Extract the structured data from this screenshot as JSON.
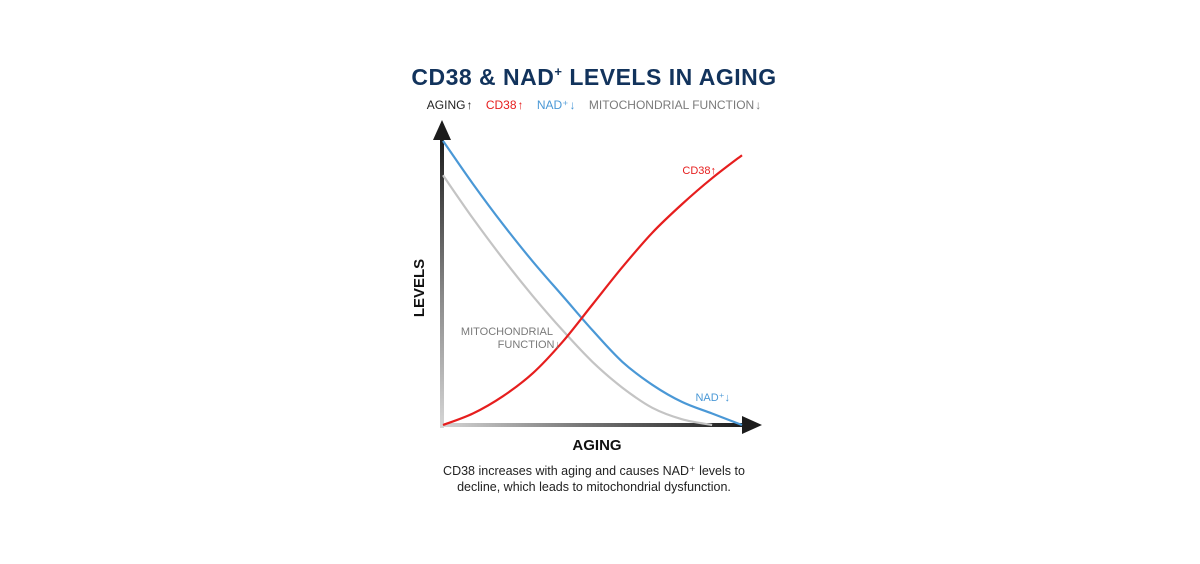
{
  "title_main": "CD38 & NAD",
  "title_sup": "+",
  "title_rest": " LEVELS IN AGING",
  "legend": [
    {
      "text": "AGING",
      "arrow": "↑",
      "color": "#222222"
    },
    {
      "text": "CD38",
      "arrow": "↑",
      "color": "#e61e1e"
    },
    {
      "text": "NAD⁺",
      "arrow": "↓",
      "color": "#4a98d6"
    },
    {
      "text": "MITOCHONDRIAL FUNCTION",
      "arrow": "↓",
      "color": "#7a7a7a"
    }
  ],
  "caption_line1": "CD38 increases with aging and causes NAD⁺ levels to",
  "caption_line2": "decline, which leads to mitochondrial dysfunction.",
  "chart_data": {
    "type": "line",
    "xlabel": "AGING",
    "ylabel": "LEVELS",
    "xlim": [
      0,
      1
    ],
    "ylim": [
      0,
      1
    ],
    "grid": false,
    "legend_placement": "top",
    "series": [
      {
        "name": "CD38↑",
        "color": "#e61e1e",
        "x": [
          0,
          0.1,
          0.2,
          0.3,
          0.4,
          0.5,
          0.6,
          0.7,
          0.8,
          0.9,
          1.0
        ],
        "y": [
          0.0,
          0.04,
          0.1,
          0.18,
          0.29,
          0.42,
          0.55,
          0.67,
          0.77,
          0.86,
          0.94
        ]
      },
      {
        "name": "NAD⁺↓",
        "color": "#4a98d6",
        "x": [
          0,
          0.1,
          0.2,
          0.3,
          0.4,
          0.5,
          0.6,
          0.7,
          0.8,
          0.9,
          1.0
        ],
        "y": [
          0.99,
          0.84,
          0.7,
          0.57,
          0.45,
          0.33,
          0.22,
          0.14,
          0.08,
          0.04,
          0.0
        ]
      },
      {
        "name": "MITOCHONDRIAL FUNCTION↓",
        "color": "#c4c4c4",
        "x": [
          0,
          0.1,
          0.2,
          0.3,
          0.4,
          0.5,
          0.6,
          0.7,
          0.8,
          0.9
        ],
        "y": [
          0.87,
          0.72,
          0.58,
          0.45,
          0.33,
          0.22,
          0.13,
          0.06,
          0.02,
          0.0
        ]
      }
    ],
    "annotations": [
      {
        "text": "CD38",
        "arrow": "↑",
        "color": "#e61e1e"
      },
      {
        "text": "NAD⁺",
        "arrow": "↓",
        "color": "#4a98d6"
      },
      {
        "text_line1": "MITOCHONDRIAL",
        "text_line2": "FUNCTION",
        "arrow": "↓",
        "color": "#7a7a7a"
      }
    ]
  }
}
